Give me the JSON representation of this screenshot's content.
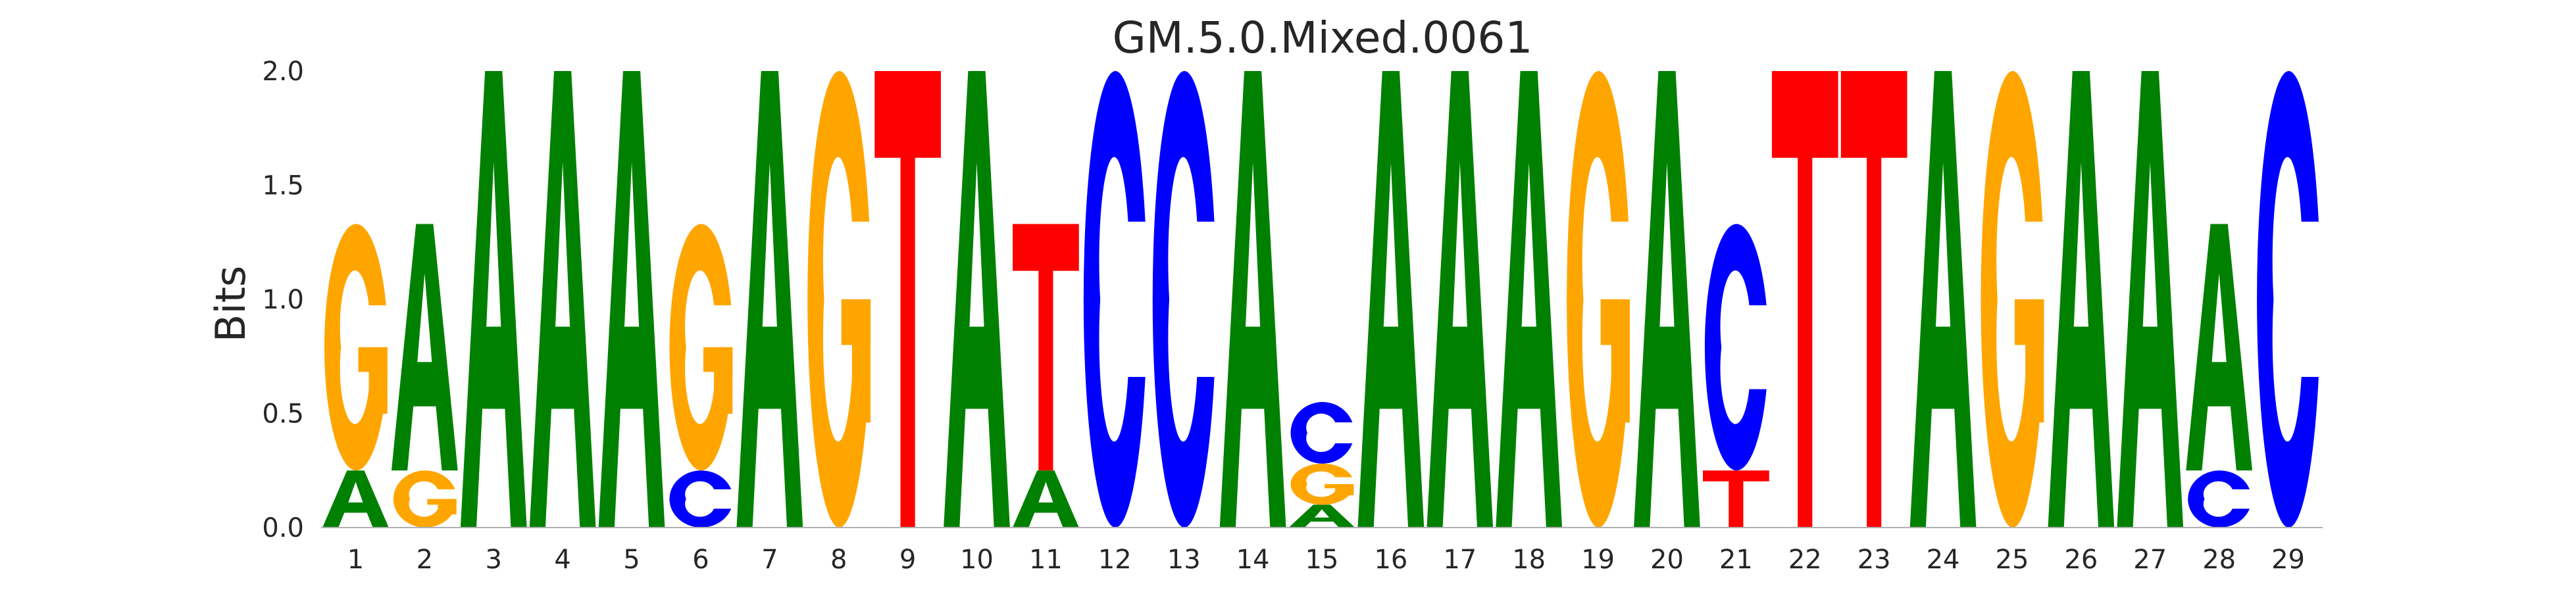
{
  "chart_data": {
    "type": "sequence-logo",
    "title": "GM.5.0.Mixed.0061",
    "ylabel": "Bits",
    "xlabel": "",
    "ylim": [
      0,
      2.0
    ],
    "yticks": [
      "0.0",
      "0.5",
      "1.0",
      "1.5",
      "2.0"
    ],
    "grid": false,
    "colors": {
      "A": "#008000",
      "C": "#0000ff",
      "G": "#ffa500",
      "T": "#ff0000"
    },
    "positions": [
      {
        "x": "1",
        "stack": [
          {
            "base": "A",
            "bits": 0.25
          },
          {
            "base": "G",
            "bits": 1.08
          }
        ]
      },
      {
        "x": "2",
        "stack": [
          {
            "base": "G",
            "bits": 0.25
          },
          {
            "base": "A",
            "bits": 1.08
          }
        ]
      },
      {
        "x": "3",
        "stack": [
          {
            "base": "A",
            "bits": 2.0
          }
        ]
      },
      {
        "x": "4",
        "stack": [
          {
            "base": "A",
            "bits": 2.0
          }
        ]
      },
      {
        "x": "5",
        "stack": [
          {
            "base": "A",
            "bits": 2.0
          }
        ]
      },
      {
        "x": "6",
        "stack": [
          {
            "base": "C",
            "bits": 0.25
          },
          {
            "base": "G",
            "bits": 1.08
          }
        ]
      },
      {
        "x": "7",
        "stack": [
          {
            "base": "A",
            "bits": 2.0
          }
        ]
      },
      {
        "x": "8",
        "stack": [
          {
            "base": "G",
            "bits": 2.0
          }
        ]
      },
      {
        "x": "9",
        "stack": [
          {
            "base": "T",
            "bits": 2.0
          }
        ]
      },
      {
        "x": "10",
        "stack": [
          {
            "base": "A",
            "bits": 2.0
          }
        ]
      },
      {
        "x": "11",
        "stack": [
          {
            "base": "A",
            "bits": 0.25
          },
          {
            "base": "T",
            "bits": 1.08
          }
        ]
      },
      {
        "x": "12",
        "stack": [
          {
            "base": "C",
            "bits": 2.0
          }
        ]
      },
      {
        "x": "13",
        "stack": [
          {
            "base": "C",
            "bits": 2.0
          }
        ]
      },
      {
        "x": "14",
        "stack": [
          {
            "base": "A",
            "bits": 2.0
          }
        ]
      },
      {
        "x": "15",
        "stack": [
          {
            "base": "A",
            "bits": 0.1
          },
          {
            "base": "G",
            "bits": 0.18
          },
          {
            "base": "C",
            "bits": 0.27
          }
        ]
      },
      {
        "x": "16",
        "stack": [
          {
            "base": "A",
            "bits": 2.0
          }
        ]
      },
      {
        "x": "17",
        "stack": [
          {
            "base": "A",
            "bits": 2.0
          }
        ]
      },
      {
        "x": "18",
        "stack": [
          {
            "base": "A",
            "bits": 2.0
          }
        ]
      },
      {
        "x": "19",
        "stack": [
          {
            "base": "G",
            "bits": 2.0
          }
        ]
      },
      {
        "x": "20",
        "stack": [
          {
            "base": "A",
            "bits": 2.0
          }
        ]
      },
      {
        "x": "21",
        "stack": [
          {
            "base": "T",
            "bits": 0.25
          },
          {
            "base": "C",
            "bits": 1.08
          }
        ]
      },
      {
        "x": "22",
        "stack": [
          {
            "base": "T",
            "bits": 2.0
          }
        ]
      },
      {
        "x": "23",
        "stack": [
          {
            "base": "T",
            "bits": 2.0
          }
        ]
      },
      {
        "x": "24",
        "stack": [
          {
            "base": "A",
            "bits": 2.0
          }
        ]
      },
      {
        "x": "25",
        "stack": [
          {
            "base": "G",
            "bits": 2.0
          }
        ]
      },
      {
        "x": "26",
        "stack": [
          {
            "base": "A",
            "bits": 2.0
          }
        ]
      },
      {
        "x": "27",
        "stack": [
          {
            "base": "A",
            "bits": 2.0
          }
        ]
      },
      {
        "x": "28",
        "stack": [
          {
            "base": "C",
            "bits": 0.25
          },
          {
            "base": "A",
            "bits": 1.08
          }
        ]
      },
      {
        "x": "29",
        "stack": [
          {
            "base": "C",
            "bits": 2.0
          }
        ]
      }
    ]
  }
}
